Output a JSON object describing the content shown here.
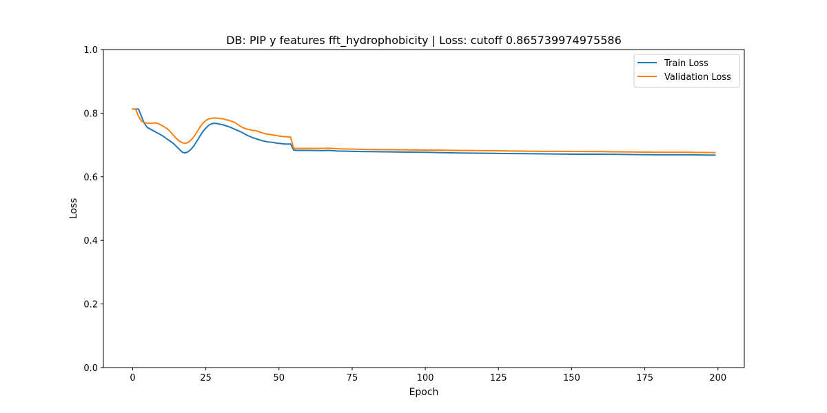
{
  "chart_data": {
    "type": "line",
    "title": "DB: PIP y features fft_hydrophobicity | Loss: cutoff 0.865739974975586",
    "xlabel": "Epoch",
    "ylabel": "Loss",
    "xlim": [
      -10,
      209
    ],
    "ylim": [
      0,
      1.0
    ],
    "xticks": [
      0,
      25,
      50,
      75,
      100,
      125,
      150,
      175,
      200
    ],
    "yticks": [
      0.0,
      0.2,
      0.4,
      0.6,
      0.8,
      1.0
    ],
    "ytick_labels": [
      "0.0",
      "0.2",
      "0.4",
      "0.6",
      "0.8",
      "1.0"
    ],
    "grid": false,
    "legend": {
      "placement": "top-right"
    },
    "series": [
      {
        "name": "Train Loss",
        "color": "#1f77b4",
        "points": [
          [
            0,
            0.813
          ],
          [
            1,
            0.813
          ],
          [
            2,
            0.813
          ],
          [
            3,
            0.79
          ],
          [
            4,
            0.768
          ],
          [
            5,
            0.755
          ],
          [
            6,
            0.75
          ],
          [
            7,
            0.745
          ],
          [
            8,
            0.74
          ],
          [
            9,
            0.735
          ],
          [
            10,
            0.73
          ],
          [
            11,
            0.724
          ],
          [
            12,
            0.717
          ],
          [
            13,
            0.711
          ],
          [
            14,
            0.704
          ],
          [
            15,
            0.695
          ],
          [
            16,
            0.686
          ],
          [
            17,
            0.677
          ],
          [
            18,
            0.675
          ],
          [
            19,
            0.679
          ],
          [
            20,
            0.687
          ],
          [
            21,
            0.698
          ],
          [
            22,
            0.713
          ],
          [
            23,
            0.728
          ],
          [
            24,
            0.742
          ],
          [
            25,
            0.753
          ],
          [
            26,
            0.762
          ],
          [
            27,
            0.767
          ],
          [
            28,
            0.768
          ],
          [
            29,
            0.767
          ],
          [
            30,
            0.765
          ],
          [
            31,
            0.763
          ],
          [
            32,
            0.76
          ],
          [
            33,
            0.757
          ],
          [
            34,
            0.753
          ],
          [
            35,
            0.749
          ],
          [
            36,
            0.745
          ],
          [
            37,
            0.741
          ],
          [
            38,
            0.736
          ],
          [
            39,
            0.731
          ],
          [
            40,
            0.727
          ],
          [
            41,
            0.723
          ],
          [
            42,
            0.72
          ],
          [
            43,
            0.717
          ],
          [
            44,
            0.714
          ],
          [
            45,
            0.712
          ],
          [
            46,
            0.71
          ],
          [
            47,
            0.709
          ],
          [
            48,
            0.708
          ],
          [
            49,
            0.706
          ],
          [
            50,
            0.705
          ],
          [
            51,
            0.704
          ],
          [
            52,
            0.703
          ],
          [
            53,
            0.703
          ],
          [
            54,
            0.703
          ],
          [
            55,
            0.684
          ],
          [
            56,
            0.683
          ],
          [
            60,
            0.683
          ],
          [
            65,
            0.682
          ],
          [
            67,
            0.683
          ],
          [
            70,
            0.681
          ],
          [
            75,
            0.68
          ],
          [
            80,
            0.679
          ],
          [
            90,
            0.678
          ],
          [
            100,
            0.677
          ],
          [
            110,
            0.675
          ],
          [
            120,
            0.674
          ],
          [
            130,
            0.673
          ],
          [
            140,
            0.672
          ],
          [
            150,
            0.671
          ],
          [
            160,
            0.671
          ],
          [
            170,
            0.67
          ],
          [
            180,
            0.669
          ],
          [
            190,
            0.669
          ],
          [
            199,
            0.668
          ]
        ]
      },
      {
        "name": "Validation Loss",
        "color": "#ff7f0e",
        "points": [
          [
            0,
            0.813
          ],
          [
            1,
            0.813
          ],
          [
            2,
            0.79
          ],
          [
            3,
            0.775
          ],
          [
            4,
            0.77
          ],
          [
            5,
            0.769
          ],
          [
            6,
            0.768
          ],
          [
            7,
            0.769
          ],
          [
            8,
            0.769
          ],
          [
            9,
            0.766
          ],
          [
            10,
            0.761
          ],
          [
            11,
            0.756
          ],
          [
            12,
            0.75
          ],
          [
            13,
            0.74
          ],
          [
            14,
            0.73
          ],
          [
            15,
            0.72
          ],
          [
            16,
            0.712
          ],
          [
            17,
            0.707
          ],
          [
            18,
            0.705
          ],
          [
            19,
            0.708
          ],
          [
            20,
            0.716
          ],
          [
            21,
            0.727
          ],
          [
            22,
            0.741
          ],
          [
            23,
            0.756
          ],
          [
            24,
            0.768
          ],
          [
            25,
            0.777
          ],
          [
            26,
            0.782
          ],
          [
            27,
            0.784
          ],
          [
            28,
            0.785
          ],
          [
            29,
            0.784
          ],
          [
            30,
            0.783
          ],
          [
            31,
            0.782
          ],
          [
            32,
            0.779
          ],
          [
            33,
            0.777
          ],
          [
            34,
            0.774
          ],
          [
            35,
            0.77
          ],
          [
            36,
            0.764
          ],
          [
            37,
            0.758
          ],
          [
            38,
            0.753
          ],
          [
            39,
            0.75
          ],
          [
            40,
            0.748
          ],
          [
            41,
            0.746
          ],
          [
            42,
            0.745
          ],
          [
            43,
            0.742
          ],
          [
            44,
            0.739
          ],
          [
            45,
            0.736
          ],
          [
            46,
            0.734
          ],
          [
            47,
            0.733
          ],
          [
            48,
            0.731
          ],
          [
            49,
            0.73
          ],
          [
            50,
            0.728
          ],
          [
            51,
            0.727
          ],
          [
            52,
            0.726
          ],
          [
            53,
            0.726
          ],
          [
            54,
            0.725
          ],
          [
            55,
            0.69
          ],
          [
            56,
            0.689
          ],
          [
            60,
            0.689
          ],
          [
            65,
            0.689
          ],
          [
            67,
            0.69
          ],
          [
            70,
            0.688
          ],
          [
            75,
            0.687
          ],
          [
            80,
            0.686
          ],
          [
            90,
            0.685
          ],
          [
            100,
            0.684
          ],
          [
            110,
            0.683
          ],
          [
            120,
            0.682
          ],
          [
            130,
            0.681
          ],
          [
            140,
            0.68
          ],
          [
            150,
            0.68
          ],
          [
            160,
            0.679
          ],
          [
            170,
            0.678
          ],
          [
            180,
            0.677
          ],
          [
            190,
            0.677
          ],
          [
            199,
            0.676
          ]
        ]
      }
    ]
  }
}
